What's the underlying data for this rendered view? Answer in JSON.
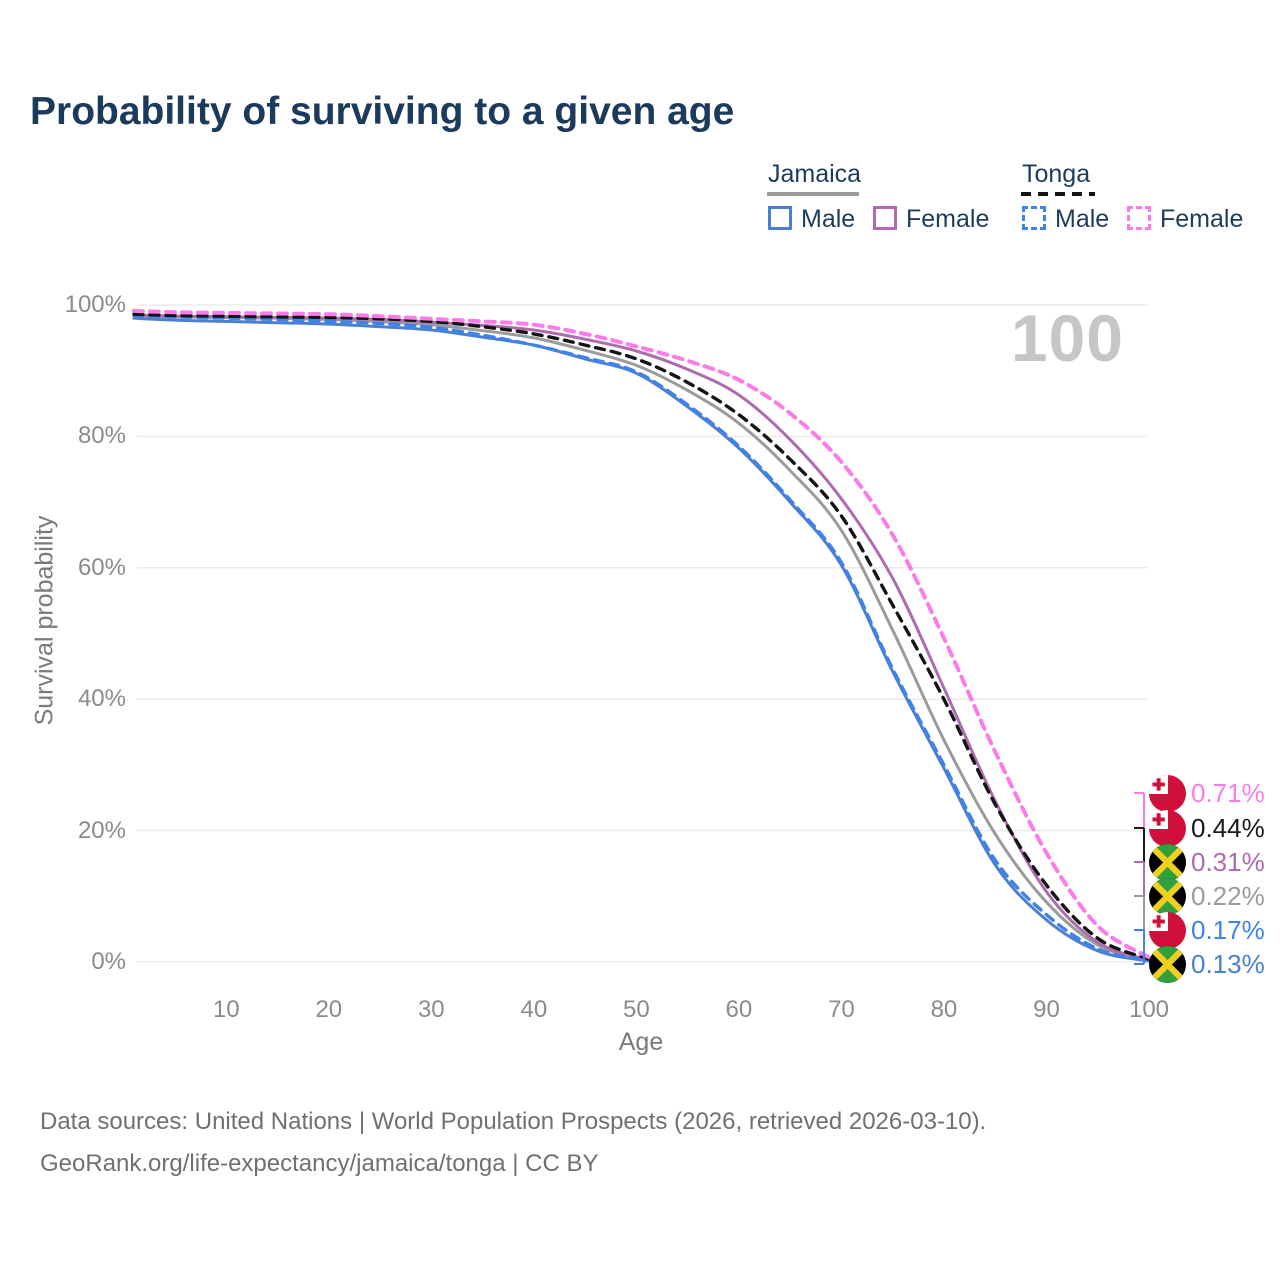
{
  "title": "Probability of surviving to a given age",
  "watermark_age": "100",
  "legend": {
    "groups": [
      {
        "name": "Jamaica",
        "line_style": "solid",
        "line_color": "#9b9b9b",
        "items": [
          {
            "label": "Male",
            "color": "#4c7fd0"
          },
          {
            "label": "Female",
            "color": "#ae6bae"
          }
        ]
      },
      {
        "name": "Tonga",
        "line_style": "dashed",
        "line_color": "#141414",
        "items": [
          {
            "label": "Male",
            "color": "#3f82ea"
          },
          {
            "label": "Female",
            "color": "#fb7ce8"
          }
        ]
      }
    ]
  },
  "chart_data": {
    "type": "line",
    "title": "Probability of surviving to a given age",
    "xlabel": "Age",
    "ylabel": "Survival probability",
    "xlim": [
      1,
      100
    ],
    "ylim": [
      0,
      100
    ],
    "grid": "horizontal",
    "x_ticks": [
      10,
      20,
      30,
      40,
      50,
      60,
      70,
      80,
      90,
      100
    ],
    "y_ticks": [
      {
        "value": 0,
        "label": "0%"
      },
      {
        "value": 20,
        "label": "20%"
      },
      {
        "value": 40,
        "label": "40%"
      },
      {
        "value": 60,
        "label": "60%"
      },
      {
        "value": 80,
        "label": "80%"
      },
      {
        "value": 100,
        "label": "100%"
      }
    ],
    "x": [
      1,
      5,
      10,
      15,
      20,
      25,
      30,
      35,
      40,
      45,
      50,
      55,
      60,
      65,
      70,
      75,
      80,
      85,
      90,
      95,
      100
    ],
    "series": [
      {
        "name": "Jamaica Male",
        "color": "#4c7fd0",
        "dash": false,
        "values": [
          98.0,
          97.7,
          97.5,
          97.3,
          97.1,
          96.7,
          96.2,
          95.1,
          93.9,
          91.8,
          89.6,
          84.5,
          78.2,
          70.0,
          60.4,
          44.2,
          29.5,
          14.8,
          6.4,
          1.7,
          0.13
        ]
      },
      {
        "name": "Jamaica Total",
        "color": "#9b9b9b",
        "dash": false,
        "values": [
          98.4,
          98.2,
          98.1,
          98.0,
          97.8,
          97.5,
          97.0,
          96.1,
          95.0,
          93.1,
          90.8,
          87.0,
          82.0,
          74.8,
          65.7,
          50.5,
          33.8,
          19.5,
          9.1,
          2.6,
          0.22
        ]
      },
      {
        "name": "Jamaica Female",
        "color": "#ae6bae",
        "dash": false,
        "values": [
          98.5,
          98.3,
          98.2,
          98.1,
          98.0,
          97.8,
          97.4,
          96.9,
          96.2,
          94.8,
          93.0,
          90.2,
          86.3,
          79.5,
          70.5,
          58.4,
          41.7,
          24.5,
          10.7,
          3.0,
          0.31
        ]
      },
      {
        "name": "Tonga Male",
        "color": "#3f82ea",
        "dash": true,
        "values": [
          98.4,
          98.2,
          98.0,
          97.8,
          97.5,
          97.2,
          96.6,
          95.4,
          93.9,
          92.0,
          89.8,
          84.8,
          78.5,
          70.3,
          60.8,
          44.6,
          30.0,
          15.5,
          7.2,
          2.0,
          0.17
        ]
      },
      {
        "name": "Tonga Total",
        "color": "#141414",
        "dash": true,
        "values": [
          98.6,
          98.4,
          98.3,
          98.2,
          98.1,
          97.9,
          97.5,
          96.7,
          95.6,
          93.9,
          91.8,
          88.2,
          83.3,
          76.5,
          67.9,
          54.3,
          40.0,
          24.0,
          11.7,
          3.6,
          0.44
        ]
      },
      {
        "name": "Tonga Female",
        "color": "#fb7ce8",
        "dash": true,
        "values": [
          99.1,
          98.9,
          98.8,
          98.7,
          98.6,
          98.3,
          97.9,
          97.5,
          97.0,
          95.6,
          93.7,
          91.5,
          88.6,
          83.5,
          76.1,
          65.0,
          49.3,
          32.0,
          16.6,
          5.5,
          0.71
        ]
      }
    ],
    "end_labels": [
      {
        "series": "Tonga Female",
        "flag": "tonga",
        "value": "0.71%",
        "color": "#fb7ce8"
      },
      {
        "series": "Tonga Total",
        "flag": "tonga",
        "value": "0.44%",
        "color": "#1a1a1a"
      },
      {
        "series": "Jamaica Female",
        "flag": "jamaica",
        "value": "0.31%",
        "color": "#ae6bae"
      },
      {
        "series": "Jamaica Total",
        "flag": "jamaica",
        "value": "0.22%",
        "color": "#9b9b9b"
      },
      {
        "series": "Tonga Male",
        "flag": "tonga",
        "value": "0.17%",
        "color": "#3f82ea"
      },
      {
        "series": "Jamaica Male",
        "flag": "jamaica",
        "value": "0.13%",
        "color": "#4c7fd0"
      }
    ]
  },
  "footer": {
    "line1": "Data sources: United Nations | World Population Prospects (2026, retrieved 2026-03-10).",
    "line2": "GeoRank.org/life-expectancy/jamaica/tonga | CC BY"
  }
}
